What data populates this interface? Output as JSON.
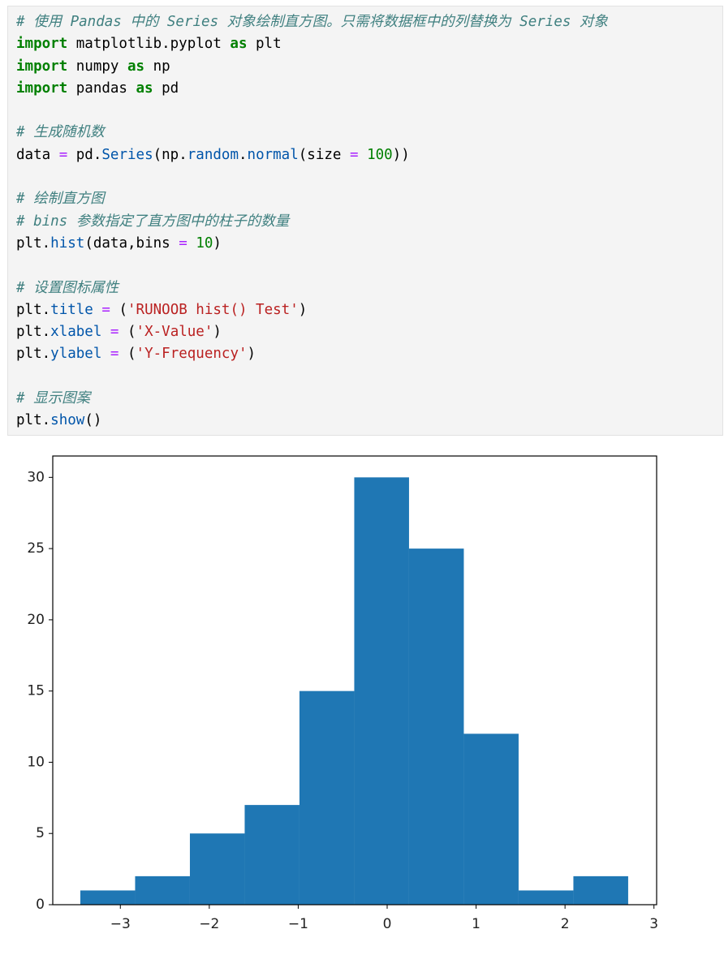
{
  "code": {
    "lines": [
      [
        {
          "text": "# 使用 Pandas 中的 Series 对象绘制直方图。只需将数据框中的列替换为 Series 对象",
          "kind": "comment"
        }
      ],
      [
        {
          "text": "import",
          "kind": "keyword"
        },
        {
          "text": " matplotlib.pyplot ",
          "kind": "plain"
        },
        {
          "text": "as",
          "kind": "keyword"
        },
        {
          "text": " plt",
          "kind": "plain"
        }
      ],
      [
        {
          "text": "import",
          "kind": "keyword"
        },
        {
          "text": " numpy ",
          "kind": "plain"
        },
        {
          "text": "as",
          "kind": "keyword"
        },
        {
          "text": " np",
          "kind": "plain"
        }
      ],
      [
        {
          "text": "import",
          "kind": "keyword"
        },
        {
          "text": " pandas ",
          "kind": "plain"
        },
        {
          "text": "as",
          "kind": "keyword"
        },
        {
          "text": " pd",
          "kind": "plain"
        }
      ],
      [],
      [
        {
          "text": "# 生成随机数",
          "kind": "comment"
        }
      ],
      [
        {
          "text": "data ",
          "kind": "plain"
        },
        {
          "text": "=",
          "kind": "operator"
        },
        {
          "text": " pd.",
          "kind": "plain"
        },
        {
          "text": "Series",
          "kind": "function"
        },
        {
          "text": "(np.",
          "kind": "plain"
        },
        {
          "text": "random",
          "kind": "function"
        },
        {
          "text": ".",
          "kind": "plain"
        },
        {
          "text": "normal",
          "kind": "function"
        },
        {
          "text": "(size ",
          "kind": "plain"
        },
        {
          "text": "=",
          "kind": "operator"
        },
        {
          "text": " ",
          "kind": "plain"
        },
        {
          "text": "100",
          "kind": "number"
        },
        {
          "text": "))",
          "kind": "plain"
        }
      ],
      [],
      [
        {
          "text": "# 绘制直方图",
          "kind": "comment"
        }
      ],
      [
        {
          "text": "# bins 参数指定了直方图中的柱子的数量",
          "kind": "comment"
        }
      ],
      [
        {
          "text": "plt.",
          "kind": "plain"
        },
        {
          "text": "hist",
          "kind": "function"
        },
        {
          "text": "(data,bins ",
          "kind": "plain"
        },
        {
          "text": "=",
          "kind": "operator"
        },
        {
          "text": " ",
          "kind": "plain"
        },
        {
          "text": "10",
          "kind": "number"
        },
        {
          "text": ")",
          "kind": "plain"
        }
      ],
      [],
      [
        {
          "text": "# 设置图标属性",
          "kind": "comment"
        }
      ],
      [
        {
          "text": "plt.",
          "kind": "plain"
        },
        {
          "text": "title",
          "kind": "function"
        },
        {
          "text": " ",
          "kind": "plain"
        },
        {
          "text": "=",
          "kind": "operator"
        },
        {
          "text": " (",
          "kind": "plain"
        },
        {
          "text": "'RUNOOB hist() Test'",
          "kind": "string"
        },
        {
          "text": ")",
          "kind": "plain"
        }
      ],
      [
        {
          "text": "plt.",
          "kind": "plain"
        },
        {
          "text": "xlabel",
          "kind": "function"
        },
        {
          "text": " ",
          "kind": "plain"
        },
        {
          "text": "=",
          "kind": "operator"
        },
        {
          "text": " (",
          "kind": "plain"
        },
        {
          "text": "'X-Value'",
          "kind": "string"
        },
        {
          "text": ")",
          "kind": "plain"
        }
      ],
      [
        {
          "text": "plt.",
          "kind": "plain"
        },
        {
          "text": "ylabel",
          "kind": "function"
        },
        {
          "text": " ",
          "kind": "plain"
        },
        {
          "text": "=",
          "kind": "operator"
        },
        {
          "text": " (",
          "kind": "plain"
        },
        {
          "text": "'Y-Frequency'",
          "kind": "string"
        },
        {
          "text": ")",
          "kind": "plain"
        }
      ],
      [],
      [
        {
          "text": "# 显示图案",
          "kind": "comment"
        }
      ],
      [
        {
          "text": "plt.",
          "kind": "plain"
        },
        {
          "text": "show",
          "kind": "function"
        },
        {
          "text": "()",
          "kind": "plain"
        }
      ]
    ]
  },
  "chart_data": {
    "type": "histogram",
    "color": "#1f77b4",
    "bins": [
      -3.45,
      -2.834,
      -2.218,
      -1.602,
      -0.986,
      -0.37,
      0.246,
      0.862,
      1.478,
      2.094,
      2.71
    ],
    "values": [
      1,
      2,
      5,
      7,
      15,
      30,
      25,
      12,
      1,
      2
    ],
    "xlim": [
      -3.76,
      3.03
    ],
    "xticks": [
      {
        "value": -3,
        "label": "−3"
      },
      {
        "value": -2,
        "label": "−2"
      },
      {
        "value": -1,
        "label": "−1"
      },
      0,
      1,
      2,
      3
    ],
    "ylim": [
      0,
      31.5
    ],
    "yticks": [
      0,
      5,
      10,
      15,
      20,
      25,
      30
    ]
  }
}
